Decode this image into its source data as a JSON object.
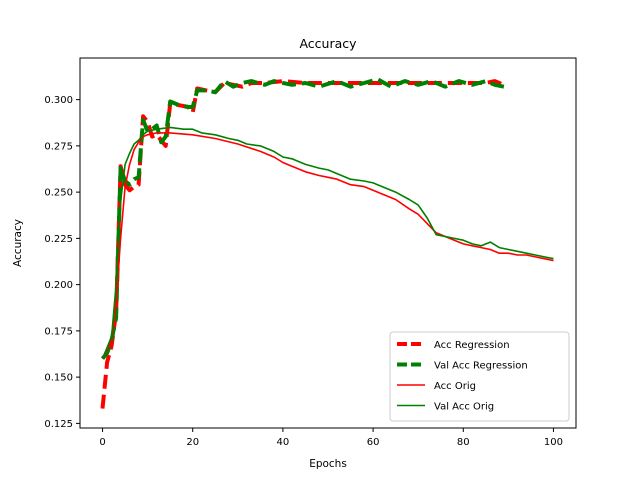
{
  "chart_data": {
    "type": "line",
    "title": "Accuracy",
    "xlabel": "Epochs",
    "ylabel": "Accuracy",
    "xlim": [
      -5,
      105
    ],
    "ylim": [
      0.1225,
      0.3225
    ],
    "xticks": [
      0,
      20,
      40,
      60,
      80,
      100
    ],
    "yticks": [
      0.125,
      0.15,
      0.175,
      0.2,
      0.225,
      0.25,
      0.275,
      0.3
    ],
    "ytick_labels": [
      "0.125",
      "0.150",
      "0.175",
      "0.200",
      "0.225",
      "0.250",
      "0.275",
      "0.300"
    ],
    "legend_position": "lower-right",
    "grid": false,
    "series": [
      {
        "name": "Acc Regression",
        "color": "#ff0000",
        "style": "dashed",
        "points": [
          [
            0,
            0.133
          ],
          [
            1,
            0.158
          ],
          [
            2,
            0.167
          ],
          [
            3,
            0.185
          ],
          [
            4,
            0.264
          ],
          [
            5,
            0.254
          ],
          [
            6,
            0.251
          ],
          [
            7,
            0.253
          ],
          [
            8,
            0.254
          ],
          [
            9,
            0.291
          ],
          [
            10,
            0.288
          ],
          [
            11,
            0.28
          ],
          [
            12,
            0.281
          ],
          [
            13,
            0.278
          ],
          [
            14,
            0.275
          ],
          [
            15,
            0.298
          ],
          [
            17,
            0.297
          ],
          [
            19,
            0.296
          ],
          [
            20,
            0.293
          ],
          [
            21,
            0.306
          ],
          [
            23,
            0.305
          ],
          [
            25,
            0.304
          ],
          [
            27,
            0.309
          ],
          [
            29,
            0.308
          ],
          [
            31,
            0.307
          ],
          [
            33,
            0.309
          ],
          [
            36,
            0.309
          ],
          [
            40,
            0.31
          ],
          [
            45,
            0.309
          ],
          [
            50,
            0.309
          ],
          [
            55,
            0.309
          ],
          [
            60,
            0.309
          ],
          [
            65,
            0.309
          ],
          [
            70,
            0.309
          ],
          [
            75,
            0.309
          ],
          [
            80,
            0.309
          ],
          [
            85,
            0.309
          ],
          [
            87,
            0.31
          ],
          [
            89,
            0.308
          ]
        ]
      },
      {
        "name": "Val Acc Regression",
        "color": "#008000",
        "style": "dashed",
        "points": [
          [
            0,
            0.16
          ],
          [
            1,
            0.163
          ],
          [
            2,
            0.17
          ],
          [
            3,
            0.182
          ],
          [
            4,
            0.263
          ],
          [
            5,
            0.256
          ],
          [
            6,
            0.254
          ],
          [
            7,
            0.257
          ],
          [
            8,
            0.258
          ],
          [
            9,
            0.289
          ],
          [
            10,
            0.283
          ],
          [
            11,
            0.284
          ],
          [
            12,
            0.286
          ],
          [
            13,
            0.277
          ],
          [
            14,
            0.28
          ],
          [
            15,
            0.299
          ],
          [
            17,
            0.297
          ],
          [
            19,
            0.296
          ],
          [
            20,
            0.296
          ],
          [
            21,
            0.305
          ],
          [
            23,
            0.305
          ],
          [
            25,
            0.304
          ],
          [
            27,
            0.31
          ],
          [
            29,
            0.307
          ],
          [
            31,
            0.309
          ],
          [
            33,
            0.31
          ],
          [
            36,
            0.308
          ],
          [
            38,
            0.31
          ],
          [
            42,
            0.308
          ],
          [
            45,
            0.309
          ],
          [
            48,
            0.307
          ],
          [
            52,
            0.31
          ],
          [
            55,
            0.307
          ],
          [
            58,
            0.309
          ],
          [
            61,
            0.311
          ],
          [
            64,
            0.307
          ],
          [
            67,
            0.31
          ],
          [
            70,
            0.308
          ],
          [
            73,
            0.31
          ],
          [
            76,
            0.307
          ],
          [
            79,
            0.31
          ],
          [
            82,
            0.308
          ],
          [
            85,
            0.31
          ],
          [
            87,
            0.308
          ],
          [
            89,
            0.307
          ]
        ]
      },
      {
        "name": "Acc Orig",
        "color": "#ff0000",
        "style": "solid",
        "points": [
          [
            0,
            0.16
          ],
          [
            1,
            0.165
          ],
          [
            2,
            0.17
          ],
          [
            3,
            0.19
          ],
          [
            4,
            0.225
          ],
          [
            5,
            0.253
          ],
          [
            6,
            0.265
          ],
          [
            7,
            0.273
          ],
          [
            8,
            0.277
          ],
          [
            9,
            0.28
          ],
          [
            10,
            0.281
          ],
          [
            12,
            0.282
          ],
          [
            15,
            0.282
          ],
          [
            20,
            0.281
          ],
          [
            25,
            0.279
          ],
          [
            30,
            0.276
          ],
          [
            35,
            0.272
          ],
          [
            38,
            0.269
          ],
          [
            40,
            0.266
          ],
          [
            42,
            0.264
          ],
          [
            45,
            0.261
          ],
          [
            48,
            0.259
          ],
          [
            50,
            0.258
          ],
          [
            52,
            0.257
          ],
          [
            55,
            0.254
          ],
          [
            58,
            0.253
          ],
          [
            60,
            0.251
          ],
          [
            62,
            0.249
          ],
          [
            65,
            0.246
          ],
          [
            68,
            0.241
          ],
          [
            70,
            0.238
          ],
          [
            72,
            0.233
          ],
          [
            74,
            0.228
          ],
          [
            76,
            0.226
          ],
          [
            78,
            0.224
          ],
          [
            80,
            0.222
          ],
          [
            82,
            0.221
          ],
          [
            84,
            0.22
          ],
          [
            86,
            0.219
          ],
          [
            88,
            0.217
          ],
          [
            90,
            0.217
          ],
          [
            92,
            0.216
          ],
          [
            94,
            0.216
          ],
          [
            96,
            0.215
          ],
          [
            98,
            0.214
          ],
          [
            100,
            0.213
          ]
        ]
      },
      {
        "name": "Val Acc Orig",
        "color": "#008000",
        "style": "solid",
        "points": [
          [
            0,
            0.16
          ],
          [
            1,
            0.166
          ],
          [
            2,
            0.172
          ],
          [
            3,
            0.2
          ],
          [
            4,
            0.245
          ],
          [
            5,
            0.265
          ],
          [
            6,
            0.271
          ],
          [
            7,
            0.276
          ],
          [
            8,
            0.278
          ],
          [
            9,
            0.281
          ],
          [
            10,
            0.283
          ],
          [
            12,
            0.284
          ],
          [
            15,
            0.285
          ],
          [
            18,
            0.284
          ],
          [
            20,
            0.284
          ],
          [
            22,
            0.282
          ],
          [
            25,
            0.281
          ],
          [
            28,
            0.279
          ],
          [
            30,
            0.278
          ],
          [
            32,
            0.276
          ],
          [
            35,
            0.275
          ],
          [
            38,
            0.272
          ],
          [
            40,
            0.269
          ],
          [
            42,
            0.268
          ],
          [
            45,
            0.265
          ],
          [
            48,
            0.263
          ],
          [
            50,
            0.262
          ],
          [
            52,
            0.26
          ],
          [
            55,
            0.257
          ],
          [
            58,
            0.256
          ],
          [
            60,
            0.255
          ],
          [
            62,
            0.253
          ],
          [
            65,
            0.25
          ],
          [
            68,
            0.246
          ],
          [
            70,
            0.243
          ],
          [
            72,
            0.236
          ],
          [
            74,
            0.227
          ],
          [
            76,
            0.226
          ],
          [
            78,
            0.225
          ],
          [
            80,
            0.224
          ],
          [
            82,
            0.222
          ],
          [
            84,
            0.221
          ],
          [
            86,
            0.223
          ],
          [
            88,
            0.22
          ],
          [
            90,
            0.219
          ],
          [
            92,
            0.218
          ],
          [
            94,
            0.217
          ],
          [
            96,
            0.216
          ],
          [
            98,
            0.215
          ],
          [
            100,
            0.214
          ]
        ]
      }
    ]
  }
}
